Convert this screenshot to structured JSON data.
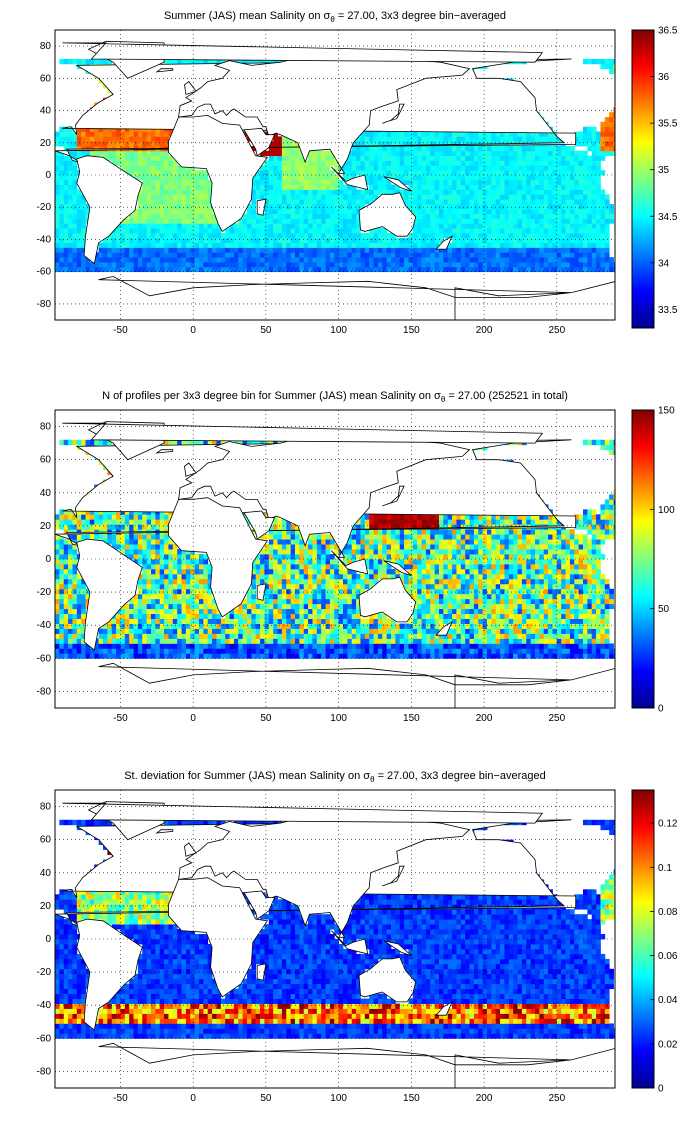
{
  "panels": [
    {
      "title_pre": "Summer (JAS) mean Salinity on ",
      "title_sym": "σ",
      "title_sub": "θ",
      "title_post": " = 27.00, 3x3 degree bin−averaged",
      "colorbar_ticks": [
        "36.5",
        "36",
        "35.5",
        "35",
        "34.5",
        "34",
        "33.5"
      ],
      "colorbar_range": [
        33.3,
        36.5
      ],
      "field": "salinity"
    },
    {
      "title_pre": "N of profiles per 3x3 degree bin for Summer (JAS) mean Salinity on ",
      "title_sym": "σ",
      "title_sub": "θ",
      "title_post": " = 27.00 (252521 in total)",
      "colorbar_ticks": [
        "150",
        "100",
        "50",
        "0"
      ],
      "colorbar_range": [
        0,
        150
      ],
      "field": "count"
    },
    {
      "title_pre": "St. deviation for Summer (JAS) mean Salinity on ",
      "title_sym": "σ",
      "title_sub": "θ",
      "title_post": " = 27.00, 3x3 degree bin−averaged",
      "colorbar_ticks": [
        "0.12",
        "0.1",
        "0.08",
        "0.06",
        "0.04",
        "0.02",
        "0"
      ],
      "colorbar_range": [
        0,
        0.135
      ],
      "field": "std"
    }
  ],
  "axes": {
    "x_ticks": [
      "-50",
      "0",
      "50",
      "100",
      "150",
      "200",
      "250"
    ],
    "y_ticks": [
      "80",
      "60",
      "40",
      "20",
      "0",
      "-20",
      "-40",
      "-60",
      "-80"
    ],
    "x_range": [
      -95,
      290
    ],
    "y_range": [
      -90,
      90
    ],
    "grid": "dotted"
  },
  "chart_data": [
    {
      "type": "heatmap",
      "title": "Summer (JAS) mean Salinity on σθ = 27.00, 3x3 degree bin−averaged",
      "x_range": [
        -95,
        290
      ],
      "y_range": [
        -90,
        90
      ],
      "colorbar_range": [
        33.3,
        36.5
      ],
      "colormap": "jet",
      "grid": true
    },
    {
      "type": "heatmap",
      "title": "N of profiles per 3x3 degree bin for Summer (JAS) mean Salinity on σθ = 27.00 (252521 in total)",
      "x_range": [
        -95,
        290
      ],
      "y_range": [
        -90,
        90
      ],
      "colorbar_range": [
        0,
        150
      ],
      "colormap": "jet",
      "grid": true
    },
    {
      "type": "heatmap",
      "title": "St. deviation for Summer (JAS) mean Salinity on σθ = 27.00, 3x3 degree bin−averaged",
      "x_range": [
        -95,
        290
      ],
      "y_range": [
        -90,
        90
      ],
      "colorbar_range": [
        0,
        0.135
      ],
      "colormap": "jet",
      "grid": true
    }
  ]
}
